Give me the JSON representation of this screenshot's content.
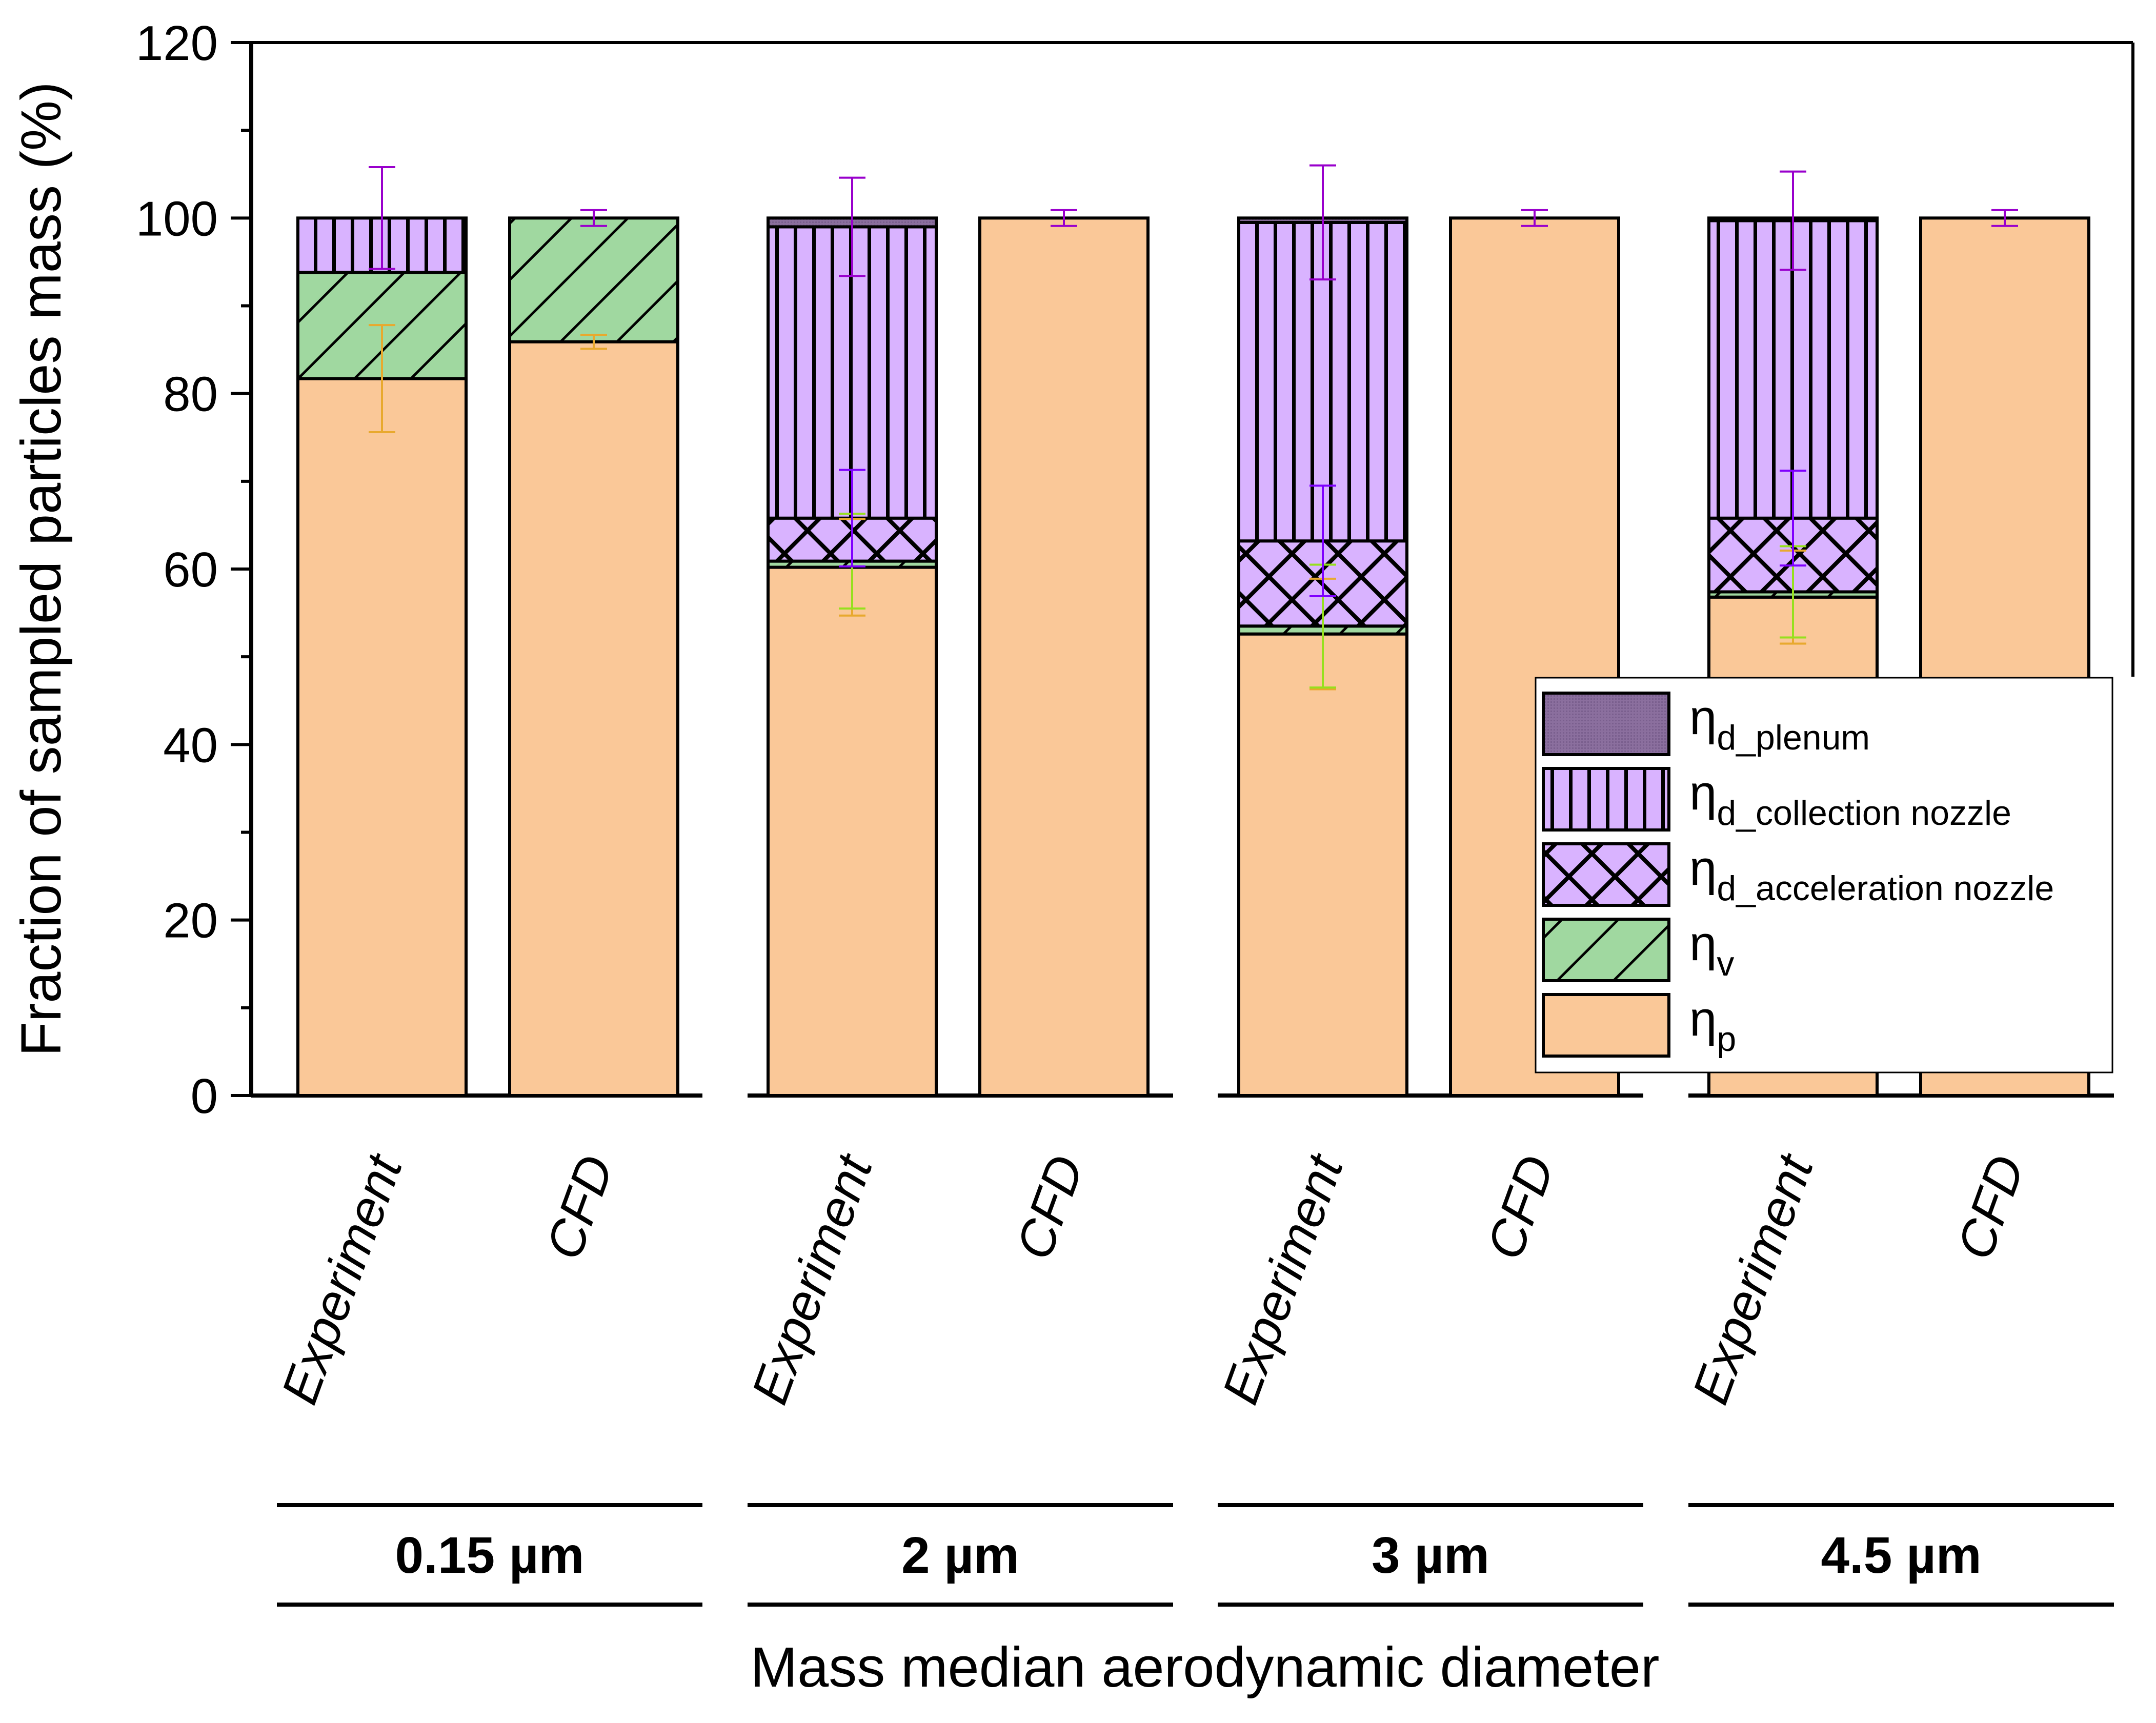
{
  "chart_data": {
    "type": "bar",
    "stacked": true,
    "title": "",
    "xlabel": "Mass median aerodynamic diameter",
    "ylabel": "Fraction of sampled particles mass (%)",
    "ylim": [
      0,
      120
    ],
    "yticks": [
      0,
      20,
      40,
      60,
      80,
      100,
      120
    ],
    "grid": false,
    "legend_position": "bottom-right",
    "groups": [
      {
        "label": "0.15 µm",
        "bars": [
          "Experiment",
          "CFD"
        ]
      },
      {
        "label": "2 µm",
        "bars": [
          "Experiment",
          "CFD"
        ]
      },
      {
        "label": "3 µm",
        "bars": [
          "Experiment",
          "CFD"
        ]
      },
      {
        "label": "4.5 µm",
        "bars": [
          "Experiment",
          "CFD"
        ]
      }
    ],
    "categories": [
      "0.15 µm Experiment",
      "0.15 µm CFD",
      "2 µm Experiment",
      "2 µm CFD",
      "3 µm Experiment",
      "3 µm CFD",
      "4.5 µm Experiment",
      "4.5 µm CFD"
    ],
    "series": [
      {
        "key": "p",
        "name": "ηp",
        "symbol": "η",
        "subscript": "p",
        "color": "#FAC898",
        "pattern": "solid",
        "values": [
          81.7,
          85.9,
          60.2,
          100,
          52.6,
          100,
          56.8,
          100
        ],
        "error_color": "#E8A92E",
        "errors": [
          6.1,
          0.8,
          5.5,
          null,
          6.3,
          null,
          5.3,
          null
        ]
      },
      {
        "key": "v",
        "name": "ηv",
        "symbol": "η",
        "subscript": "v",
        "color": "#A0D8A0",
        "pattern": "diagonal",
        "values": [
          12.1,
          14.1,
          0.7,
          0,
          0.9,
          0,
          0.6,
          0
        ],
        "error_color": "#96E01E",
        "errors": [
          null,
          null,
          5.4,
          null,
          7.0,
          null,
          5.2,
          null
        ]
      },
      {
        "key": "an",
        "name": "ηd_acceleration nozzle",
        "symbol": "η",
        "subscript": "d_acceleration nozzle",
        "color": "#D9B3FF",
        "pattern": "crosshatch",
        "values": [
          0,
          0,
          4.9,
          0,
          9.7,
          0,
          8.4,
          0
        ],
        "error_color": "#7F00FF",
        "errors": [
          null,
          null,
          5.5,
          null,
          6.3,
          null,
          5.4,
          null
        ]
      },
      {
        "key": "cn",
        "name": "ηd_collection nozzle",
        "symbol": "η",
        "subscript": "d_collection nozzle",
        "color": "#D9B3FF",
        "pattern": "vertical",
        "values": [
          6.2,
          0,
          33.2,
          0,
          36.3,
          0,
          33.9,
          0
        ],
        "error_color": "#9900CC",
        "errors": [
          5.8,
          0.9,
          5.6,
          0.9,
          6.5,
          0.9,
          5.6,
          0.9
        ]
      },
      {
        "key": "pl",
        "name": "ηd_plenum",
        "symbol": "η",
        "subscript": "d_plenum",
        "color": "#8B6F9E",
        "pattern": "dense",
        "values": [
          0,
          0,
          1.0,
          0,
          0.5,
          0,
          0.3,
          0
        ],
        "error_color": "#9900CC",
        "errors": [
          null,
          null,
          null,
          null,
          null,
          null,
          null,
          null
        ]
      }
    ],
    "legend_order": [
      "pl",
      "cn",
      "an",
      "v",
      "p"
    ]
  }
}
